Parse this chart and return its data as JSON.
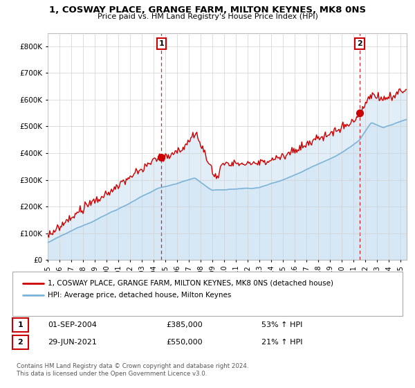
{
  "title": "1, COSWAY PLACE, GRANGE FARM, MILTON KEYNES, MK8 0NS",
  "subtitle": "Price paid vs. HM Land Registry's House Price Index (HPI)",
  "legend_line1": "1, COSWAY PLACE, GRANGE FARM, MILTON KEYNES, MK8 0NS (detached house)",
  "legend_line2": "HPI: Average price, detached house, Milton Keynes",
  "transaction1_date": "01-SEP-2004",
  "transaction1_price": "£385,000",
  "transaction1_hpi": "53% ↑ HPI",
  "transaction2_date": "29-JUN-2021",
  "transaction2_price": "£550,000",
  "transaction2_hpi": "21% ↑ HPI",
  "footer": "Contains HM Land Registry data © Crown copyright and database right 2024.\nThis data is licensed under the Open Government Licence v3.0.",
  "hpi_color": "#7ab3d8",
  "property_color": "#cc0000",
  "fill_color": "#d6e8f5",
  "dashed_line_color": "#cc0000",
  "ylim_min": 0,
  "ylim_max": 850000,
  "yticks": [
    0,
    100000,
    200000,
    300000,
    400000,
    500000,
    600000,
    700000,
    800000
  ],
  "xlim_min": 1995.0,
  "xlim_max": 2025.5,
  "xticks": [
    1995,
    1996,
    1997,
    1998,
    1999,
    2000,
    2001,
    2002,
    2003,
    2004,
    2005,
    2006,
    2007,
    2008,
    2009,
    2010,
    2011,
    2012,
    2013,
    2014,
    2015,
    2016,
    2017,
    2018,
    2019,
    2020,
    2021,
    2022,
    2023,
    2024,
    2025
  ],
  "t1_year": 2004.667,
  "t2_year": 2021.5,
  "p1_price": 385000,
  "p2_price": 550000
}
